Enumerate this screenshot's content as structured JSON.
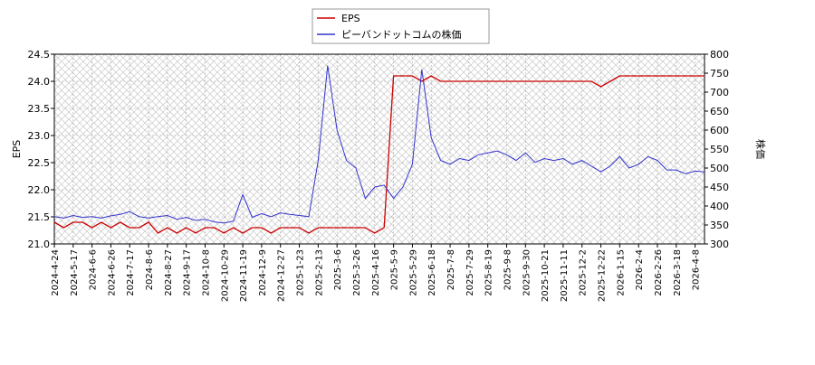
{
  "chart_data": {
    "type": "line",
    "x": [
      "2024-4-24",
      "2024-5-7",
      "2024-5-17",
      "2024-5-28",
      "2024-6-6",
      "2024-6-14",
      "2024-6-26",
      "2024-7-5",
      "2024-7-17",
      "2024-7-26",
      "2024-8-6",
      "2024-8-16",
      "2024-8-27",
      "2024-9-5",
      "2024-9-17",
      "2024-9-27",
      "2024-10-8",
      "2024-10-18",
      "2024-10-29",
      "2024-11-8",
      "2024-11-19",
      "2024-11-28",
      "2024-12-9",
      "2024-12-18",
      "2024-12-27",
      "2025-1-14",
      "2025-1-23",
      "2025-2-3",
      "2025-2-13",
      "2025-2-21",
      "2025-3-6",
      "2025-3-14",
      "2025-3-26",
      "2025-4-4",
      "2025-4-16",
      "2025-4-25",
      "2025-5-9",
      "2025-5-20",
      "2025-5-29",
      "2025-6-9",
      "2025-6-18",
      "2025-6-27",
      "2025-7-8",
      "2025-7-17",
      "2025-7-29",
      "2025-8-7",
      "2025-8-19",
      "2025-8-28",
      "2025-9-8",
      "2025-9-18",
      "2025-9-30",
      "2025-10-9",
      "2025-10-21",
      "2025-10-30",
      "2025-11-11",
      "2025-11-20",
      "2025-12-2",
      "2025-12-11",
      "2025-12-22",
      "2026-1-5",
      "2026-1-15",
      "2026-1-26",
      "2026-2-4",
      "2026-2-16",
      "2026-2-26",
      "2026-3-9",
      "2026-3-18",
      "2026-3-27",
      "2026-4-8",
      "2026-4-17"
    ],
    "xticks": [
      "2024-4-24",
      "2024-5-17",
      "2024-6-6",
      "2024-6-26",
      "2024-7-17",
      "2024-8-6",
      "2024-8-27",
      "2024-9-17",
      "2024-10-8",
      "2024-10-29",
      "2024-11-19",
      "2024-12-9",
      "2024-12-27",
      "2025-1-23",
      "2025-2-13",
      "2025-3-6",
      "2025-3-26",
      "2025-4-16",
      "2025-5-9",
      "2025-5-29",
      "2025-6-18",
      "2025-7-8",
      "2025-7-29",
      "2025-8-19",
      "2025-9-8",
      "2025-9-30",
      "2025-10-21",
      "2025-11-11",
      "2025-12-2",
      "2025-12-22",
      "2026-1-15",
      "2026-2-4",
      "2026-2-26",
      "2026-3-18",
      "2026-4-8"
    ],
    "ylabel": "EPS",
    "y2label": "株価",
    "ylim": [
      21,
      24.5
    ],
    "yticks": [
      {
        "value": 21,
        "label": "21.0"
      },
      {
        "value": 21.5,
        "label": "21.5"
      },
      {
        "value": 22,
        "label": "22.0"
      },
      {
        "value": 22.5,
        "label": "22.5"
      },
      {
        "value": 23,
        "label": "23.0"
      },
      {
        "value": 23.5,
        "label": "23.5"
      },
      {
        "value": 24,
        "label": "24.0"
      },
      {
        "value": 24.5,
        "label": "24.5"
      }
    ],
    "y2lim": [
      300,
      800
    ],
    "y2ticks": [
      300,
      350,
      400,
      450,
      500,
      550,
      600,
      650,
      700,
      750,
      800
    ],
    "grid": true,
    "series": [
      {
        "name": "EPS",
        "color": "#cc0000",
        "values": [
          21.4,
          21.3,
          21.4,
          21.4,
          21.3,
          21.4,
          21.3,
          21.4,
          21.3,
          21.3,
          21.4,
          21.2,
          21.3,
          21.2,
          21.3,
          21.2,
          21.3,
          21.3,
          21.2,
          21.3,
          21.2,
          21.3,
          21.3,
          21.2,
          21.3,
          21.3,
          21.3,
          21.2,
          21.3,
          21.3,
          21.3,
          21.3,
          21.3,
          21.3,
          21.2,
          21.3,
          24.1,
          24.1,
          24.1,
          24.0,
          24.1,
          24.0,
          24.0,
          24.0,
          24.0,
          24.0,
          24.0,
          24.0,
          24.0,
          24.0,
          24.0,
          24.0,
          24.0,
          24.0,
          24.0,
          24.0,
          24.0,
          24.0,
          23.9,
          24.0,
          24.1,
          24.1,
          24.1,
          24.1,
          24.1,
          24.1,
          24.1,
          24.1,
          24.1,
          24.1
        ]
      },
      {
        "name": "ピーバンドットコムの株価",
        "color": "#3333cc",
        "axis": "y2",
        "values": [
          372,
          368,
          375,
          370,
          372,
          368,
          374,
          378,
          385,
          372,
          368,
          372,
          375,
          365,
          370,
          362,
          365,
          358,
          355,
          360,
          430,
          370,
          380,
          372,
          382,
          378,
          375,
          372,
          520,
          770,
          600,
          520,
          500,
          420,
          450,
          455,
          420,
          450,
          510,
          760,
          580,
          520,
          510,
          525,
          520,
          535,
          540,
          545,
          535,
          520,
          540,
          515,
          525,
          520,
          525,
          510,
          520,
          505,
          490,
          505,
          530,
          500,
          510,
          530,
          520,
          495,
          495,
          485,
          492,
          490
        ]
      }
    ]
  }
}
